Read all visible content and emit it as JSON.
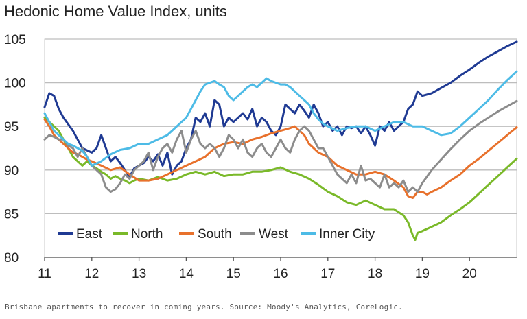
{
  "caption": "Brisbane apartments to recover in coming years. Source: Moody's Analytics, CoreLogic.",
  "chart_data": {
    "type": "line",
    "title": "Hedonic Home Value Index, units",
    "xlabel": "",
    "ylabel": "",
    "xlim": [
      11,
      21
    ],
    "ylim": [
      80,
      105
    ],
    "x_ticks": [
      11,
      12,
      13,
      14,
      15,
      16,
      17,
      18,
      19,
      20
    ],
    "x_tick_labels": [
      "11",
      "12",
      "13",
      "14",
      "15",
      "16",
      "17",
      "18",
      "19",
      "20"
    ],
    "y_ticks": [
      80,
      85,
      90,
      95,
      100,
      105
    ],
    "y_tick_labels": [
      "80",
      "85",
      "90",
      "95",
      "100",
      "105"
    ],
    "grid": true,
    "legend_position": "bottom-left",
    "series": [
      {
        "name": "East",
        "color": "#1f3a93",
        "x": [
          11.0,
          11.1,
          11.2,
          11.3,
          11.4,
          11.6,
          11.8,
          12.0,
          12.1,
          12.2,
          12.3,
          12.4,
          12.5,
          12.6,
          12.7,
          12.8,
          12.9,
          13.0,
          13.1,
          13.2,
          13.3,
          13.4,
          13.5,
          13.6,
          13.7,
          13.8,
          13.9,
          14.0,
          14.1,
          14.2,
          14.3,
          14.4,
          14.5,
          14.6,
          14.7,
          14.8,
          14.9,
          15.0,
          15.1,
          15.2,
          15.3,
          15.4,
          15.5,
          15.6,
          15.7,
          15.8,
          15.9,
          16.0,
          16.1,
          16.2,
          16.3,
          16.4,
          16.5,
          16.6,
          16.7,
          16.8,
          16.9,
          17.0,
          17.1,
          17.2,
          17.3,
          17.4,
          17.5,
          17.6,
          17.7,
          17.8,
          17.9,
          18.0,
          18.1,
          18.2,
          18.3,
          18.4,
          18.5,
          18.6,
          18.7,
          18.8,
          18.9,
          19.0,
          19.2,
          19.4,
          19.6,
          19.8,
          20.0,
          20.2,
          20.4,
          20.6,
          20.8,
          21.0
        ],
        "values": [
          97.2,
          98.8,
          98.5,
          97.0,
          96.0,
          94.5,
          92.5,
          92.0,
          92.5,
          94.0,
          92.5,
          91.0,
          91.5,
          90.8,
          90.0,
          89.2,
          90.2,
          90.5,
          90.8,
          91.5,
          91.0,
          91.8,
          90.5,
          92.0,
          89.5,
          90.5,
          91.0,
          92.5,
          93.5,
          96.0,
          95.5,
          96.5,
          95.0,
          98.0,
          97.5,
          95.0,
          96.0,
          95.5,
          96.0,
          96.5,
          95.8,
          97.0,
          95.0,
          96.0,
          95.5,
          94.5,
          94.0,
          95.0,
          97.5,
          97.0,
          96.5,
          97.5,
          96.8,
          96.0,
          97.5,
          96.5,
          95.0,
          95.5,
          94.5,
          95.0,
          94.0,
          95.0,
          94.8,
          95.0,
          94.2,
          95.0,
          94.0,
          92.8,
          95.0,
          94.5,
          95.5,
          94.5,
          95.0,
          95.5,
          97.0,
          97.5,
          99.0,
          98.5,
          98.8,
          99.4,
          100.0,
          100.8,
          101.5,
          102.3,
          103.0,
          103.6,
          104.2,
          104.7
        ]
      },
      {
        "name": "North",
        "color": "#7ab929",
        "x": [
          11.0,
          11.1,
          11.2,
          11.3,
          11.4,
          11.5,
          11.6,
          11.7,
          11.8,
          11.9,
          12.0,
          12.1,
          12.2,
          12.3,
          12.4,
          12.5,
          12.6,
          12.7,
          12.8,
          12.9,
          13.0,
          13.2,
          13.4,
          13.6,
          13.8,
          14.0,
          14.2,
          14.4,
          14.6,
          14.8,
          15.0,
          15.2,
          15.4,
          15.6,
          15.8,
          16.0,
          16.2,
          16.4,
          16.6,
          16.8,
          17.0,
          17.2,
          17.4,
          17.6,
          17.8,
          18.0,
          18.2,
          18.4,
          18.6,
          18.7,
          18.8,
          18.85,
          18.9,
          19.0,
          19.2,
          19.4,
          19.6,
          19.8,
          20.0,
          20.2,
          20.4,
          20.6,
          20.8,
          21.0
        ],
        "values": [
          96.0,
          95.5,
          95.0,
          94.5,
          93.5,
          92.5,
          91.5,
          91.0,
          90.5,
          91.0,
          90.5,
          90.2,
          89.8,
          89.5,
          89.0,
          89.3,
          89.0,
          88.8,
          88.5,
          88.8,
          89.0,
          88.8,
          89.2,
          88.8,
          89.0,
          89.5,
          89.8,
          89.5,
          89.8,
          89.3,
          89.5,
          89.5,
          89.8,
          89.8,
          90.0,
          90.3,
          89.8,
          89.5,
          89.0,
          88.3,
          87.5,
          87.0,
          86.3,
          86.0,
          86.5,
          86.0,
          85.5,
          85.5,
          84.8,
          84.0,
          82.5,
          82.0,
          82.8,
          83.0,
          83.5,
          84.0,
          84.8,
          85.5,
          86.3,
          87.3,
          88.3,
          89.3,
          90.3,
          91.3
        ]
      },
      {
        "name": "South",
        "color": "#e8712c",
        "x": [
          11.0,
          11.1,
          11.2,
          11.3,
          11.4,
          11.5,
          11.6,
          11.7,
          11.8,
          11.9,
          12.0,
          12.2,
          12.4,
          12.6,
          12.8,
          13.0,
          13.2,
          13.4,
          13.6,
          13.8,
          14.0,
          14.2,
          14.4,
          14.6,
          14.8,
          15.0,
          15.2,
          15.4,
          15.6,
          15.8,
          16.0,
          16.2,
          16.3,
          16.4,
          16.5,
          16.6,
          16.8,
          17.0,
          17.2,
          17.4,
          17.6,
          17.8,
          18.0,
          18.2,
          18.4,
          18.6,
          18.7,
          18.8,
          18.9,
          19.0,
          19.1,
          19.2,
          19.4,
          19.6,
          19.8,
          20.0,
          20.2,
          20.4,
          20.6,
          20.8,
          21.0
        ],
        "values": [
          95.8,
          95.0,
          94.0,
          93.5,
          93.0,
          92.5,
          92.0,
          91.8,
          91.5,
          91.2,
          91.0,
          90.5,
          90.0,
          90.3,
          89.5,
          88.8,
          88.8,
          89.0,
          89.5,
          90.0,
          90.5,
          91.0,
          91.5,
          92.5,
          93.0,
          93.2,
          93.0,
          93.5,
          93.8,
          94.2,
          94.5,
          94.8,
          95.0,
          94.5,
          94.0,
          93.0,
          92.0,
          91.5,
          90.5,
          90.0,
          89.5,
          89.5,
          89.8,
          89.5,
          88.8,
          88.0,
          87.0,
          86.8,
          87.5,
          87.5,
          87.2,
          87.5,
          88.0,
          88.8,
          89.5,
          90.5,
          91.3,
          92.2,
          93.1,
          94.0,
          94.9
        ]
      },
      {
        "name": "West",
        "color": "#8c8c8c",
        "x": [
          11.0,
          11.1,
          11.2,
          11.3,
          11.4,
          11.5,
          11.6,
          11.7,
          11.8,
          11.9,
          12.0,
          12.1,
          12.2,
          12.3,
          12.4,
          12.5,
          12.6,
          12.7,
          12.8,
          12.9,
          13.0,
          13.1,
          13.2,
          13.3,
          13.4,
          13.5,
          13.6,
          13.7,
          13.8,
          13.9,
          14.0,
          14.1,
          14.2,
          14.3,
          14.4,
          14.5,
          14.6,
          14.7,
          14.8,
          14.9,
          15.0,
          15.1,
          15.2,
          15.3,
          15.4,
          15.5,
          15.6,
          15.7,
          15.8,
          15.9,
          16.0,
          16.1,
          16.2,
          16.3,
          16.4,
          16.5,
          16.6,
          16.7,
          16.8,
          16.9,
          17.0,
          17.1,
          17.2,
          17.3,
          17.4,
          17.5,
          17.6,
          17.7,
          17.8,
          17.9,
          18.0,
          18.1,
          18.2,
          18.3,
          18.4,
          18.5,
          18.6,
          18.7,
          18.8,
          18.9,
          19.0,
          19.2,
          19.4,
          19.6,
          19.8,
          20.0,
          20.2,
          20.4,
          20.6,
          20.8,
          21.0
        ],
        "values": [
          93.5,
          94.0,
          93.8,
          93.5,
          93.5,
          92.8,
          92.5,
          91.5,
          92.5,
          91.5,
          90.5,
          90.0,
          89.5,
          88.0,
          87.5,
          87.8,
          88.5,
          89.5,
          89.0,
          90.0,
          90.5,
          91.0,
          92.0,
          90.0,
          91.5,
          92.5,
          93.0,
          92.0,
          93.5,
          94.5,
          92.0,
          93.5,
          94.5,
          93.0,
          92.5,
          93.0,
          92.5,
          91.5,
          92.5,
          94.0,
          93.5,
          92.5,
          93.5,
          92.0,
          91.5,
          92.5,
          93.0,
          92.0,
          91.5,
          92.5,
          93.5,
          92.5,
          92.0,
          93.5,
          94.5,
          95.0,
          94.5,
          93.5,
          92.5,
          92.5,
          91.5,
          90.5,
          89.5,
          89.0,
          88.5,
          89.5,
          88.5,
          90.5,
          88.8,
          89.0,
          88.5,
          88.0,
          89.5,
          88.0,
          88.5,
          88.0,
          88.8,
          87.5,
          88.0,
          87.5,
          88.5,
          90.0,
          91.2,
          92.4,
          93.5,
          94.5,
          95.3,
          96.0,
          96.7,
          97.3,
          97.9
        ]
      },
      {
        "name": "Inner City",
        "color": "#4dbbe6",
        "x": [
          11.0,
          11.1,
          11.2,
          11.3,
          11.4,
          11.5,
          11.6,
          11.7,
          11.8,
          11.9,
          12.0,
          12.2,
          12.4,
          12.6,
          12.8,
          13.0,
          13.2,
          13.4,
          13.6,
          13.8,
          14.0,
          14.1,
          14.2,
          14.3,
          14.4,
          14.5,
          14.6,
          14.7,
          14.8,
          14.9,
          15.0,
          15.1,
          15.2,
          15.3,
          15.4,
          15.5,
          15.6,
          15.7,
          15.8,
          15.9,
          16.0,
          16.1,
          16.2,
          16.3,
          16.4,
          16.5,
          16.6,
          16.7,
          16.8,
          16.9,
          17.0,
          17.2,
          17.4,
          17.6,
          17.8,
          18.0,
          18.2,
          18.4,
          18.6,
          18.8,
          19.0,
          19.2,
          19.4,
          19.6,
          19.8,
          20.0,
          20.2,
          20.4,
          20.6,
          20.8,
          21.0
        ],
        "values": [
          96.5,
          95.5,
          94.5,
          94.0,
          93.5,
          93.0,
          92.8,
          92.5,
          92.2,
          91.5,
          90.5,
          91.0,
          91.8,
          92.3,
          92.5,
          93.0,
          93.0,
          93.5,
          94.0,
          95.0,
          96.0,
          97.0,
          98.0,
          99.0,
          99.8,
          100.0,
          100.2,
          99.8,
          99.5,
          98.5,
          98.0,
          98.5,
          99.0,
          99.5,
          99.8,
          99.5,
          100.0,
          100.5,
          100.2,
          100.0,
          99.8,
          99.8,
          99.5,
          99.0,
          98.5,
          98.0,
          97.5,
          96.5,
          95.8,
          95.3,
          95.0,
          94.5,
          94.8,
          95.0,
          95.0,
          94.5,
          95.0,
          95.5,
          95.5,
          95.0,
          95.0,
          94.5,
          94.0,
          94.2,
          95.0,
          96.0,
          97.0,
          98.0,
          99.2,
          100.3,
          101.3
        ]
      }
    ]
  }
}
